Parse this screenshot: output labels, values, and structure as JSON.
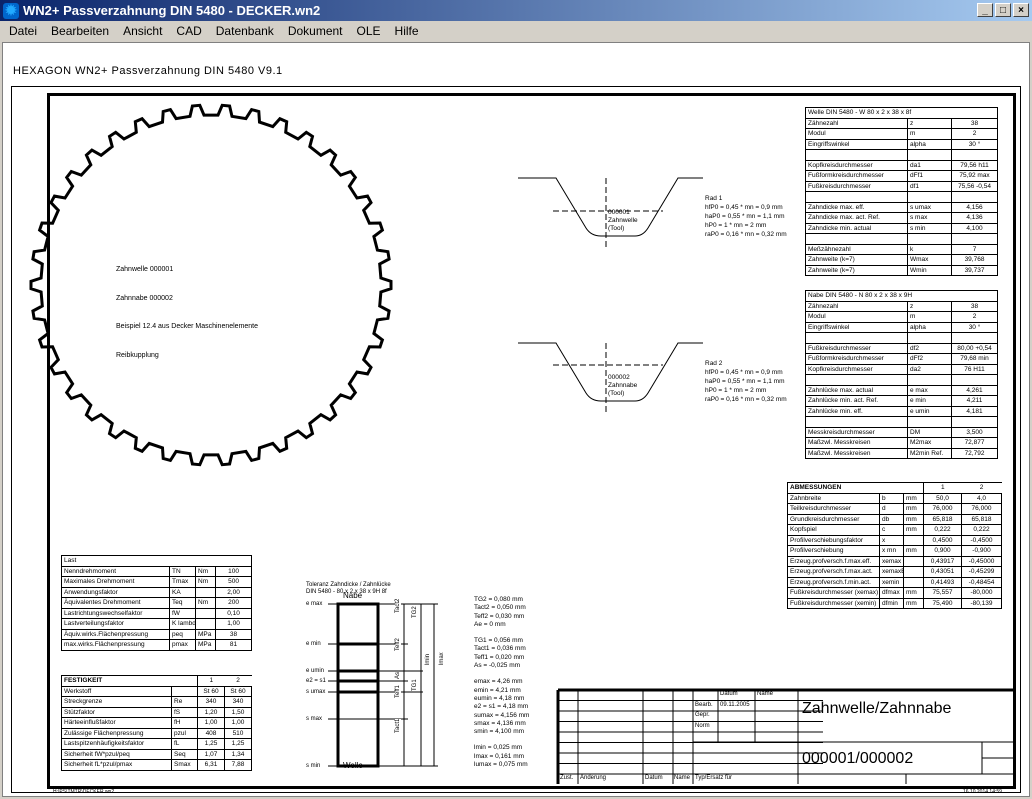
{
  "window": {
    "title": "WN2+   Passverzahnung DIN 5480  -  DECKER.wn2",
    "icon": "gear-icon",
    "buttons": [
      "_",
      "□",
      "×"
    ]
  },
  "menu": [
    "Datei",
    "Bearbeiten",
    "Ansicht",
    "CAD",
    "Datenbank",
    "Dokument",
    "OLE",
    "Hilfe"
  ],
  "header": "HEXAGON  WN2+  Passverzahnung DIN 5480  V9.1",
  "gear": {
    "teeth": 38
  },
  "note": [
    "Zahnwelle 000001",
    "Zahnnabe 000002",
    "Beispiel 12.4 aus Decker Maschinenelemente",
    "Reibkupplung"
  ],
  "profile1": {
    "label": [
      "000001",
      "Zahnwelle",
      "(Tool)"
    ],
    "text": [
      "Rad 1",
      "hfP0 = 0,45 * mn = 0,9 mm",
      "haP0 = 0,55 * mn = 1,1 mm",
      "hP0 = 1 * mn = 2 mm",
      "raP0 = 0,16 * mn = 0,32 mm"
    ]
  },
  "profile2": {
    "label": [
      "000002",
      "Zahnnabe",
      "(Tool)"
    ],
    "text": [
      "Rad 2",
      "hfP0 = 0,45 * mn = 0,9 mm",
      "haP0 = 0,55 * mn = 1,1 mm",
      "hP0 = 1 * mn = 2 mm",
      "raP0 = 0,16 * mn = 0,32 mm"
    ]
  },
  "tables": {
    "welle": {
      "title": "Welle DIN 5480 - W 80 x 2 x 38 x 8f",
      "rows": [
        [
          "Zähnezahl",
          "z",
          "38"
        ],
        [
          "Modul",
          "m",
          "2"
        ],
        [
          "Eingriffswinkel",
          "alpha",
          "30 °"
        ],
        [
          "",
          "",
          ""
        ],
        [
          "Kopfkreisdurchmesser",
          "da1",
          "79,56 h11"
        ],
        [
          "Fußformkreisdurchmesser",
          "dFf1",
          "75,92 max"
        ],
        [
          "Fußkreisdurchmesser",
          "df1",
          "75,56 -0,54"
        ],
        [
          "",
          "",
          ""
        ],
        [
          "Zahndicke max. eff.",
          "s umax",
          "4,156"
        ],
        [
          "Zahndicke max. act. Ref.",
          "s max",
          "4,136"
        ],
        [
          "Zahndicke min. actual",
          "s min",
          "4,100"
        ],
        [
          "",
          "",
          ""
        ],
        [
          "Meßzähnezahl",
          "k",
          "7"
        ],
        [
          "Zahnweite (k=7)",
          "Wmax",
          "39,768"
        ],
        [
          "Zahnweite (k=7)",
          "Wmin",
          "39,737"
        ]
      ]
    },
    "nabe": {
      "title": "Nabe DIN 5480 - N 80 x 2 x 38 x 9H",
      "rows": [
        [
          "Zähnezahl",
          "z",
          "38"
        ],
        [
          "Modul",
          "m",
          "2"
        ],
        [
          "Eingriffswinkel",
          "alpha",
          "30 °"
        ],
        [
          "",
          "",
          ""
        ],
        [
          "Fußkreisdurchmesser",
          "df2",
          "80,00 +0,54"
        ],
        [
          "Fußformkreisdurchmesser",
          "dFf2",
          "79,68 min"
        ],
        [
          "Kopfkreisdurchmesser",
          "da2",
          "76 H11"
        ],
        [
          "",
          "",
          ""
        ],
        [
          "Zahnlücke max. actual",
          "e max",
          "4,261"
        ],
        [
          "Zahnlücke min. act. Ref.",
          "e min",
          "4,211"
        ],
        [
          "Zahnlücke min. eff.",
          "e umin",
          "4,181"
        ],
        [
          "",
          "",
          ""
        ],
        [
          "Messkreisdurchmesser",
          "DM",
          "3,500"
        ],
        [
          "Maßzwl. Messkreisen",
          "M2max",
          "72,877"
        ],
        [
          "Maßzwl. Messkreisen",
          "M2min Ref.",
          "72,792"
        ]
      ]
    },
    "abm": {
      "title": "ABMESSUNGEN",
      "cols": [
        "1",
        "2"
      ],
      "rows": [
        [
          "Zahnbreite",
          "b",
          "mm",
          "50,0",
          "4,0"
        ],
        [
          "Teilkreisdurchmesser",
          "d",
          "mm",
          "76,000",
          "76,000"
        ],
        [
          "Grundkreisdurchmesser",
          "db",
          "mm",
          "65,818",
          "65,818"
        ],
        [
          "Kopfspiel",
          "c",
          "mm",
          "0,222",
          "0,222"
        ],
        [
          "Profilverschiebungsfaktor",
          "x",
          "",
          "0,4500",
          "-0,4500"
        ],
        [
          "Profilverschiebung",
          "x mn",
          "mm",
          "0,900",
          "-0,900"
        ],
        [
          "Erzeug.profversch.f.max.eff.",
          "xemax",
          "",
          "0,43917",
          "-0,45000"
        ],
        [
          "Erzeug.profversch.f.max.act.",
          "xemaxE",
          "",
          "0,43051",
          "-0,45299"
        ],
        [
          "Erzeug.profversch.f.min.act.",
          "xemin",
          "",
          "0,41493",
          "-0,48454"
        ],
        [
          "Fußkreisdurchmesser (xemax)",
          "dfmax",
          "mm",
          "75,557",
          "-80,000"
        ],
        [
          "Fußkreisdurchmesser (xemin)",
          "dfmin",
          "mm",
          "75,490",
          "-80,139"
        ]
      ]
    },
    "last": {
      "title": "Last",
      "rows": [
        [
          "Nenndrehmoment",
          "TN",
          "Nm",
          "100"
        ],
        [
          "Maximales Drehmoment",
          "Tmax",
          "Nm",
          "500"
        ],
        [
          "Anwendungsfaktor",
          "KA",
          "",
          "2,00"
        ],
        [
          "Äquivalentes Drehmoment",
          "Teq",
          "Nm",
          "200"
        ],
        [
          "Lastrichtungswechselfaktor",
          "fW",
          "",
          "0,10"
        ],
        [
          "Lastverteilungsfaktor",
          "K lambda",
          "",
          "1,00"
        ],
        [
          "Äquiv.wirks.Flächenpressung",
          "peq",
          "MPa",
          "38"
        ],
        [
          "max.wirks.Flächenpressung",
          "pmax",
          "MPa",
          "81"
        ]
      ]
    },
    "fest": {
      "title": "FESTIGKEIT",
      "cols": [
        "1",
        "2"
      ],
      "rows": [
        [
          "Werkstoff",
          "",
          "St 60",
          "St 60"
        ],
        [
          "Streckgrenze",
          "Re",
          "340",
          "340"
        ],
        [
          "Stützfaktor",
          "fS",
          "1,20",
          "1,50"
        ],
        [
          "Härteeinflußfaktor",
          "fH",
          "1,00",
          "1,00"
        ],
        [
          "Zulässige Flächenpressung",
          "pzul",
          "408",
          "510"
        ],
        [
          "Lastspitzenhäufigkeitsfaktor",
          "fL",
          "1,25",
          "1,25"
        ],
        [
          "Sicherheit fW*pzul/peq",
          "Seq",
          "1,07",
          "1,34"
        ],
        [
          "Sicherheit fL*pzul/pmax",
          "Smax",
          "6,31",
          "7,88"
        ]
      ]
    }
  },
  "tolerance": {
    "title": [
      "Toleranz Zahndicke / Zahnlücke",
      "DIN 5480 - 80 x 2 x 38 x 9H 8f"
    ],
    "top": "Nabe",
    "bottom": "Welle",
    "levels": [
      "e max",
      "e min",
      "e umin",
      "e2 = s1",
      "s umax",
      "s max",
      "s min"
    ],
    "dims": [
      "Tact2",
      "Teff2",
      "As ",
      "Teff1",
      "Tact1",
      "TG2",
      "TG1",
      "lmin",
      "lmax"
    ],
    "values": [
      [
        "TG2 = 0,080 mm",
        "Tact2 = 0,050 mm",
        "Teff2 = 0,030 mm",
        "Ae = 0 mm"
      ],
      [
        "TG1 = 0,056 mm",
        "Tact1 = 0,036 mm",
        "Teff1 = 0,020 mm",
        "As = -0,025 mm"
      ],
      [
        "emax = 4,26 mm",
        "emin = 4,21 mm",
        "eumin = 4,18 mm",
        "e2 = s1 = 4,18 mm",
        "sumax = 4,156 mm",
        "smax = 4,136 mm",
        "smin = 4,100 mm"
      ],
      [
        "lmin = 0,025 mm",
        "lmax = 0,161 mm",
        "lumax = 0,075 mm"
      ]
    ]
  },
  "titleblock": {
    "datum": "Datum",
    "name": "Name",
    "bearb": "Bearb.",
    "date": "09.11.2005",
    "gepr": "Gepr.",
    "norm": "Norm",
    "title": "Zahnwelle/Zahnnabe",
    "number": "000001/000002",
    "zust": "Zust.",
    "aenderung": "Änderung",
    "datum2": "Datum",
    "name2": "Name",
    "ersatz": "Typ/Ersatz für"
  },
  "footer": {
    "path": "H:\\PS\\TMTR\\DECKER.wn2",
    "timestamp": "16.10.2014 14:59"
  }
}
